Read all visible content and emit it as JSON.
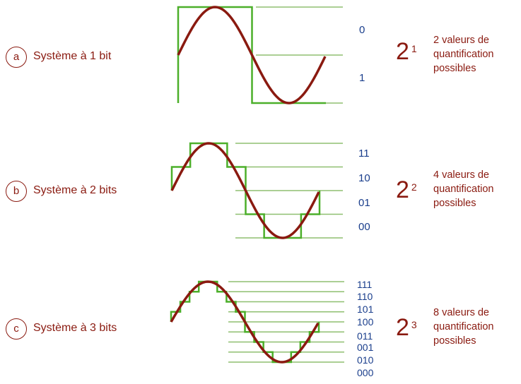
{
  "panels": [
    {
      "id": "a",
      "letter": "a",
      "title": "Système à 1 bit",
      "power_base": "2",
      "power_exp": "1",
      "description": [
        "2 valeurs de",
        "quantification",
        "possibles"
      ],
      "codes": [
        "0",
        "1"
      ]
    },
    {
      "id": "b",
      "letter": "b",
      "title": "Système à 2 bits",
      "power_base": "2",
      "power_exp": "2",
      "description": [
        "4 valeurs de",
        "quantification",
        "possibles"
      ],
      "codes": [
        "11",
        "10",
        "01",
        "00"
      ]
    },
    {
      "id": "c",
      "letter": "c",
      "title": "Système à 3 bits",
      "power_base": "2",
      "power_exp": "3",
      "description": [
        "8 valeurs de",
        "quantification",
        "possibles"
      ],
      "codes": [
        "111",
        "110",
        "101",
        "100",
        "011",
        "001",
        "010",
        "000"
      ]
    }
  ],
  "colors": {
    "sine": "#8a1a10",
    "steps": "#4caf2a",
    "levels": "#8fbf70",
    "codes": "#1a3e8c",
    "labels": "#8a1a10"
  }
}
